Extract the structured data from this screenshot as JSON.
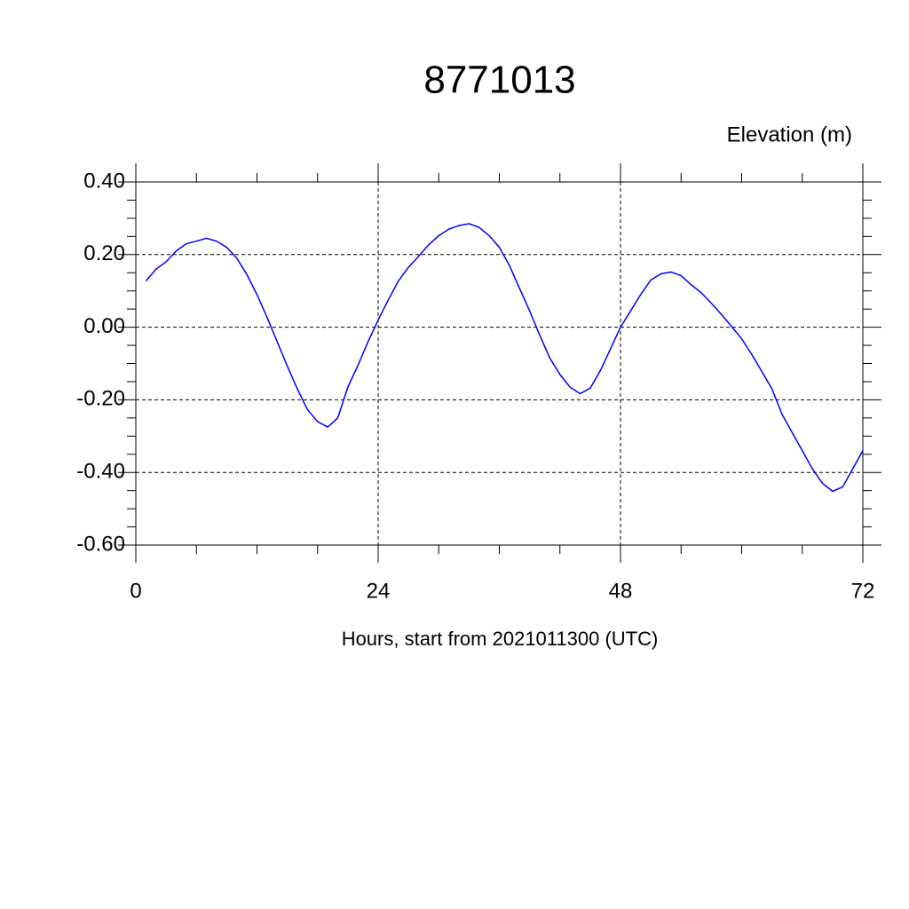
{
  "chart_data": {
    "type": "line",
    "title": "8771013",
    "subtitle": "Elevation (m)",
    "x_label": "Hours, start from 2021011300 (UTC)",
    "x": [
      1,
      2,
      3,
      4,
      5,
      6,
      7,
      8,
      9,
      10,
      11,
      12,
      13,
      14,
      15,
      16,
      17,
      18,
      19,
      20,
      21,
      22,
      23,
      24,
      25,
      26,
      27,
      28,
      29,
      30,
      31,
      32,
      33,
      34,
      35,
      36,
      37,
      38,
      39,
      40,
      41,
      42,
      43,
      44,
      45,
      46,
      47,
      48,
      49,
      50,
      51,
      52,
      53,
      54,
      55,
      56,
      57,
      58,
      59,
      60,
      61,
      62,
      63,
      64,
      65,
      66,
      67,
      68,
      69,
      70,
      71,
      72
    ],
    "series": [
      {
        "color": "#0000ff",
        "values": [
          0.127,
          0.16,
          0.18,
          0.21,
          0.23,
          0.237,
          0.245,
          0.237,
          0.22,
          0.19,
          0.145,
          0.09,
          0.027,
          -0.04,
          -0.107,
          -0.17,
          -0.227,
          -0.26,
          -0.275,
          -0.25,
          -0.165,
          -0.105,
          -0.04,
          0.02,
          0.075,
          0.127,
          0.165,
          0.195,
          0.227,
          0.252,
          0.27,
          0.28,
          0.285,
          0.275,
          0.252,
          0.22,
          0.17,
          0.107,
          0.045,
          -0.022,
          -0.085,
          -0.13,
          -0.165,
          -0.183,
          -0.168,
          -0.12,
          -0.06,
          0.0,
          0.045,
          0.09,
          0.13,
          0.147,
          0.152,
          0.142,
          0.117,
          0.095,
          0.066,
          0.035,
          0.002,
          -0.032,
          -0.075,
          -0.122,
          -0.17,
          -0.24,
          -0.29,
          -0.34,
          -0.39,
          -0.43,
          -0.452,
          -0.44,
          -0.39,
          -0.34
        ]
      }
    ],
    "xlim": [
      0,
      72
    ],
    "xticks": [
      0,
      24,
      48,
      72
    ],
    "xminorticks": [
      6,
      12,
      18,
      30,
      36,
      42,
      54,
      60,
      66
    ],
    "ylim": [
      -0.6,
      0.4
    ],
    "yticks": [
      {
        "value": -0.6,
        "label": "-0.60"
      },
      {
        "value": -0.4,
        "label": "-0.40"
      },
      {
        "value": -0.2,
        "label": "-0.20"
      },
      {
        "value": 0,
        "label": "0.00"
      },
      {
        "value": 0.2,
        "label": "0.20"
      },
      {
        "value": 0.4,
        "label": "0.40"
      }
    ],
    "yminorticks": [
      -0.55,
      -0.5,
      -0.45,
      -0.35,
      -0.3,
      -0.25,
      -0.15,
      -0.1,
      -0.05,
      0.05,
      0.1,
      0.15,
      0.25,
      0.3,
      0.35
    ],
    "grid": true
  }
}
